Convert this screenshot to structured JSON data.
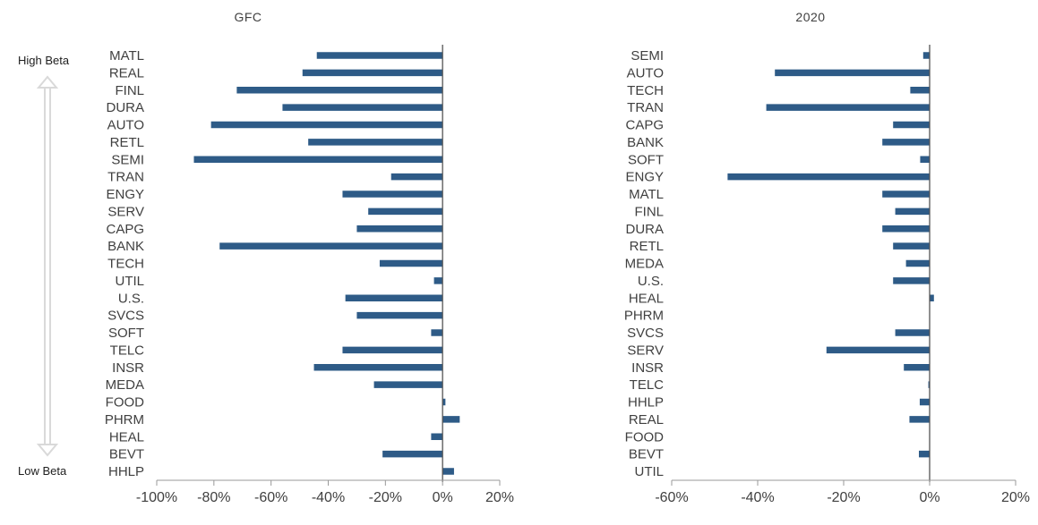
{
  "beta_scale": {
    "top_label": "High Beta",
    "bottom_label": "Low Beta",
    "arrow_color": "#d9d9d9"
  },
  "chart_data": [
    {
      "type": "bar",
      "orientation": "horizontal",
      "title": "GFC",
      "xlim": [
        -100,
        20
      ],
      "xticks": [
        -100,
        -80,
        -60,
        -40,
        -20,
        0,
        20
      ],
      "tick_labels": [
        "-100%",
        "-80%",
        "-60%",
        "-40%",
        "-20%",
        "0%",
        "20%"
      ],
      "bar_color": "#2e5b87",
      "grid": false,
      "categories": [
        "MATL",
        "REAL",
        "FINL",
        "DURA",
        "AUTO",
        "RETL",
        "SEMI",
        "TRAN",
        "ENGY",
        "SERV",
        "CAPG",
        "BANK",
        "TECH",
        "UTIL",
        "U.S.",
        "SVCS",
        "SOFT",
        "TELC",
        "INSR",
        "MEDA",
        "FOOD",
        "PHRM",
        "HEAL",
        "BEVT",
        "HHLP"
      ],
      "values": [
        -44,
        -49,
        -72,
        -56,
        -81,
        -47,
        -87,
        -18,
        -35,
        -26,
        -30,
        -78,
        -22,
        -3,
        -34,
        -30,
        -4,
        -35,
        -45,
        -24,
        1,
        6,
        -4,
        -21,
        4
      ]
    },
    {
      "type": "bar",
      "orientation": "horizontal",
      "title": "2020",
      "xlim": [
        -60,
        20
      ],
      "xticks": [
        -60,
        -40,
        -20,
        0,
        20
      ],
      "tick_labels": [
        "-60%",
        "-40%",
        "-20%",
        "0%",
        "20%"
      ],
      "bar_color": "#2e5b87",
      "grid": false,
      "categories": [
        "SEMI",
        "AUTO",
        "TECH",
        "TRAN",
        "CAPG",
        "BANK",
        "SOFT",
        "ENGY",
        "MATL",
        "FINL",
        "DURA",
        "RETL",
        "MEDA",
        "U.S.",
        "HEAL",
        "PHRM",
        "SVCS",
        "SERV",
        "INSR",
        "TELC",
        "HHLP",
        "REAL",
        "FOOD",
        "BEVT",
        "UTIL"
      ],
      "values": [
        -1.5,
        -36,
        -4.5,
        -38,
        -8.5,
        -11,
        -2.2,
        -47,
        -11,
        -8,
        -11,
        -8.5,
        -5.5,
        -8.5,
        1,
        0,
        -8,
        -24,
        -6,
        -0.3,
        -2.3,
        -4.7,
        0,
        -2.5,
        0
      ]
    }
  ]
}
